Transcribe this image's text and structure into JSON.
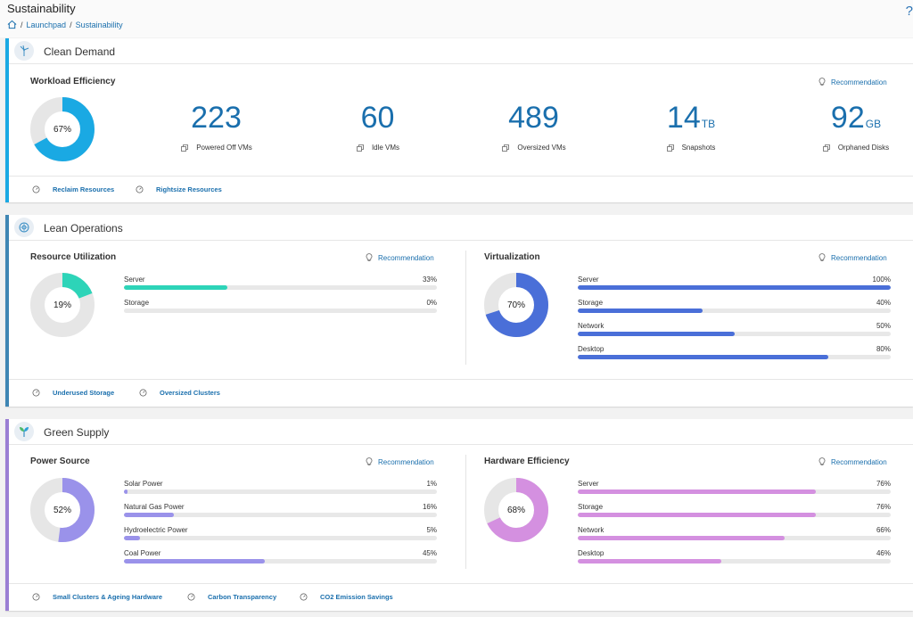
{
  "page": {
    "title": "Sustainability",
    "breadcrumb": [
      "Launchpad",
      "Sustainability"
    ]
  },
  "colors": {
    "link": "#1a6fad",
    "clean_accent": "#1aa9e3",
    "lean_accent": "#3f86b4",
    "green_accent": "#9b7fd4",
    "workload_donut": "#1aa9e3",
    "resource_bar": "#2dd4b8",
    "virtualization_bar": "#4a6fd8",
    "power_bar": "#9a92ea",
    "hardware_bar": "#d490e0"
  },
  "clean_demand": {
    "title": "Clean Demand",
    "section_title": "Workload Efficiency",
    "recommendation": "Recommendation",
    "donut_percent": 67,
    "donut_label": "67%",
    "metrics": [
      {
        "value": "223",
        "unit": "",
        "label": "Powered Off VMs"
      },
      {
        "value": "60",
        "unit": "",
        "label": "Idle VMs"
      },
      {
        "value": "489",
        "unit": "",
        "label": "Oversized VMs"
      },
      {
        "value": "14",
        "unit": "TB",
        "label": "Snapshots"
      },
      {
        "value": "92",
        "unit": "GB",
        "label": "Orphaned Disks"
      }
    ],
    "footer_links": [
      "Reclaim Resources",
      "Rightsize Resources"
    ]
  },
  "lean_operations": {
    "title": "Lean Operations",
    "resource_utilization": {
      "title": "Resource Utilization",
      "recommendation": "Recommendation",
      "donut_percent": 19,
      "donut_label": "19%",
      "bars": [
        {
          "label": "Server",
          "value": 33,
          "display": "33%"
        },
        {
          "label": "Storage",
          "value": 0,
          "display": "0%"
        }
      ]
    },
    "virtualization": {
      "title": "Virtualization",
      "recommendation": "Recommendation",
      "donut_percent": 70,
      "donut_label": "70%",
      "bars": [
        {
          "label": "Server",
          "value": 100,
          "display": "100%"
        },
        {
          "label": "Storage",
          "value": 40,
          "display": "40%"
        },
        {
          "label": "Network",
          "value": 50,
          "display": "50%"
        },
        {
          "label": "Desktop",
          "value": 80,
          "display": "80%"
        }
      ]
    },
    "footer_links": [
      "Underused Storage",
      "Oversized Clusters"
    ]
  },
  "green_supply": {
    "title": "Green Supply",
    "power_source": {
      "title": "Power Source",
      "recommendation": "Recommendation",
      "donut_percent": 52,
      "donut_label": "52%",
      "bars": [
        {
          "label": "Solar Power",
          "value": 1,
          "display": "1%"
        },
        {
          "label": "Natural Gas Power",
          "value": 16,
          "display": "16%"
        },
        {
          "label": "Hydroelectric Power",
          "value": 5,
          "display": "5%"
        },
        {
          "label": "Coal Power",
          "value": 45,
          "display": "45%"
        }
      ]
    },
    "hardware_efficiency": {
      "title": "Hardware Efficiency",
      "recommendation": "Recommendation",
      "donut_percent": 68,
      "donut_label": "68%",
      "bars": [
        {
          "label": "Server",
          "value": 76,
          "display": "76%"
        },
        {
          "label": "Storage",
          "value": 76,
          "display": "76%"
        },
        {
          "label": "Network",
          "value": 66,
          "display": "66%"
        },
        {
          "label": "Desktop",
          "value": 46,
          "display": "46%"
        }
      ]
    },
    "footer_links": [
      "Small Clusters & Ageing Hardware",
      "Carbon Transparency",
      "CO2 Emission Savings"
    ]
  },
  "icons": {
    "help": "help-icon",
    "home": "home-icon",
    "recommendation": "lightbulb-icon",
    "footer_link": "gauge-icon",
    "metric": "vm-icon",
    "clean_demand_logo": "wind-turbine-icon",
    "lean_operations_logo": "gear-globe-icon",
    "green_supply_logo": "sprout-icon"
  }
}
